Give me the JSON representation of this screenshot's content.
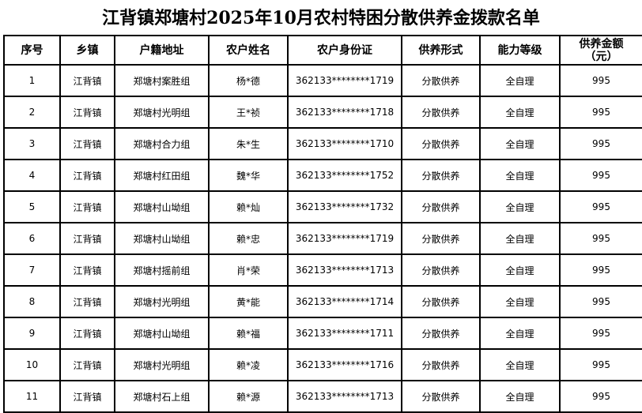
{
  "title": "江背镇郑塘村2025年10月农村特困分散供养金拨款名单",
  "headers": [
    "序号",
    "乡镇",
    "户籍地址",
    "农户姓名",
    "农户身份证",
    "供养形式",
    "能力等级",
    "供养金额（元）"
  ],
  "rows": [
    [
      "1",
      "江背镇",
      "郑塘村案胜组",
      "杨*德",
      "362133********1719",
      "分散供养",
      "全自理",
      "995"
    ],
    [
      "2",
      "江背镇",
      "郑塘村光明组",
      "王*祯",
      "362133********1718",
      "分散供养",
      "全自理",
      "995"
    ],
    [
      "3",
      "江背镇",
      "郑塘村合力组",
      "朱*生",
      "362133********1710",
      "分散供养",
      "全自理",
      "995"
    ],
    [
      "4",
      "江背镇",
      "郑塘村红田组",
      "魏*华",
      "362133********1752",
      "分散供养",
      "全自理",
      "995"
    ],
    [
      "5",
      "江背镇",
      "郑塘村山坳组",
      "赖*灿",
      "362133********1732",
      "分散供养",
      "全自理",
      "995"
    ],
    [
      "6",
      "江背镇",
      "郑塘村山坳组",
      "赖*忠",
      "362133********1719",
      "分散供养",
      "全自理",
      "995"
    ],
    [
      "7",
      "江背镇",
      "郑塘村摇前组",
      "肖*荣",
      "362133********1713",
      "分散供养",
      "全自理",
      "995"
    ],
    [
      "8",
      "江背镇",
      "郑塘村光明组",
      "黄*能",
      "362133********1714",
      "分散供养",
      "全自理",
      "995"
    ],
    [
      "9",
      "江背镇",
      "郑塘村山坳组",
      "赖*福",
      "362133********1711",
      "分散供养",
      "全自理",
      "995"
    ],
    [
      "10",
      "江背镇",
      "郑塘村光明组",
      "赖*凌",
      "362133********1716",
      "分散供养",
      "全自理",
      "995"
    ],
    [
      "11",
      "江背镇",
      "郑塘村石上组",
      "赖*源",
      "362133********1713",
      "分散供养",
      "全自理",
      "995"
    ]
  ]
}
